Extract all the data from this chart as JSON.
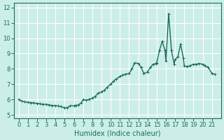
{
  "title": "",
  "xlabel": "Humidex (Indice chaleur)",
  "ylabel": "",
  "xlim": [
    -0.5,
    22
  ],
  "ylim": [
    4.8,
    12.3
  ],
  "xticks": [
    0,
    1,
    2,
    3,
    4,
    5,
    6,
    7,
    8,
    9,
    10,
    11,
    12,
    13,
    14,
    15,
    16,
    17,
    18,
    19,
    20,
    21
  ],
  "yticks": [
    5,
    6,
    7,
    8,
    9,
    10,
    11,
    12
  ],
  "bg_color": "#cceee8",
  "grid_color": "#ffffff",
  "line_color": "#1a6b5e",
  "line_width": 1.0,
  "x": [
    0,
    0.3,
    0.6,
    1.0,
    1.3,
    1.6,
    2.0,
    2.3,
    2.6,
    3.0,
    3.3,
    3.6,
    4.0,
    4.3,
    4.6,
    5.0,
    5.3,
    5.6,
    6.0,
    6.2,
    6.5,
    6.8,
    7.0,
    7.3,
    7.6,
    8.0,
    8.3,
    8.6,
    9.0,
    9.3,
    9.6,
    10.0,
    10.3,
    10.6,
    11.0,
    11.3,
    11.6,
    12.0,
    12.3,
    12.6,
    13.0,
    13.3,
    13.6,
    14.0,
    14.3,
    14.6,
    14.9,
    15.0,
    15.3,
    15.6,
    15.9,
    16.0,
    16.3,
    16.6,
    16.9,
    17.0,
    17.3,
    17.6,
    17.9,
    18.0,
    18.3,
    18.6,
    19.0,
    19.3,
    19.6,
    20.0,
    20.3,
    20.6,
    21.0,
    21.3
  ],
  "y": [
    6.0,
    5.9,
    5.85,
    5.82,
    5.8,
    5.78,
    5.75,
    5.72,
    5.7,
    5.68,
    5.65,
    5.62,
    5.6,
    5.58,
    5.55,
    5.45,
    5.48,
    5.6,
    5.58,
    5.62,
    5.65,
    5.8,
    6.0,
    5.95,
    6.0,
    6.1,
    6.2,
    6.4,
    6.5,
    6.6,
    6.8,
    7.0,
    7.2,
    7.35,
    7.5,
    7.6,
    7.65,
    7.7,
    8.0,
    8.4,
    8.35,
    8.1,
    7.7,
    7.8,
    8.1,
    8.3,
    8.35,
    8.4,
    9.2,
    9.8,
    9.2,
    8.5,
    11.6,
    9.2,
    8.3,
    8.6,
    8.8,
    9.6,
    8.7,
    8.2,
    8.15,
    8.2,
    8.3,
    8.3,
    8.35,
    8.3,
    8.2,
    8.1,
    7.7,
    7.65
  ]
}
